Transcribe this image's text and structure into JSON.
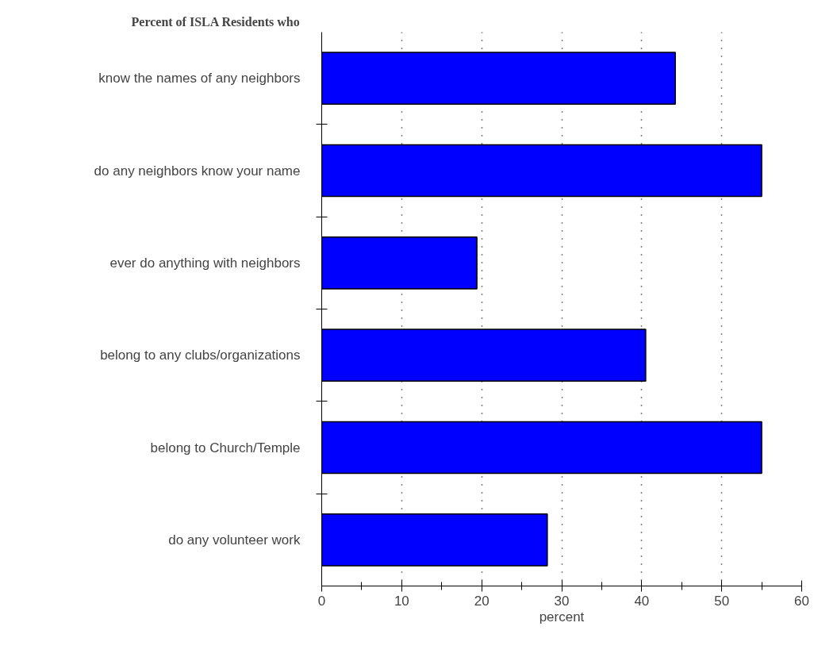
{
  "chart_data": {
    "type": "bar",
    "orientation": "horizontal",
    "ylabel": "Percent of ISLA Residents who",
    "xlabel": "percent",
    "categories": [
      "know the names of any neighbors",
      "do any neighbors know your name",
      "ever do anything with neighbors",
      "belong to any clubs/organizations",
      "belong to Church/Temple",
      "do any volunteer work"
    ],
    "values": [
      44.2,
      55.0,
      19.4,
      40.5,
      55.0,
      28.2
    ],
    "color": "#0000ff",
    "xlim": [
      0,
      60
    ],
    "xticks": [
      0,
      10,
      20,
      30,
      40,
      50,
      60
    ],
    "grid": "x"
  }
}
